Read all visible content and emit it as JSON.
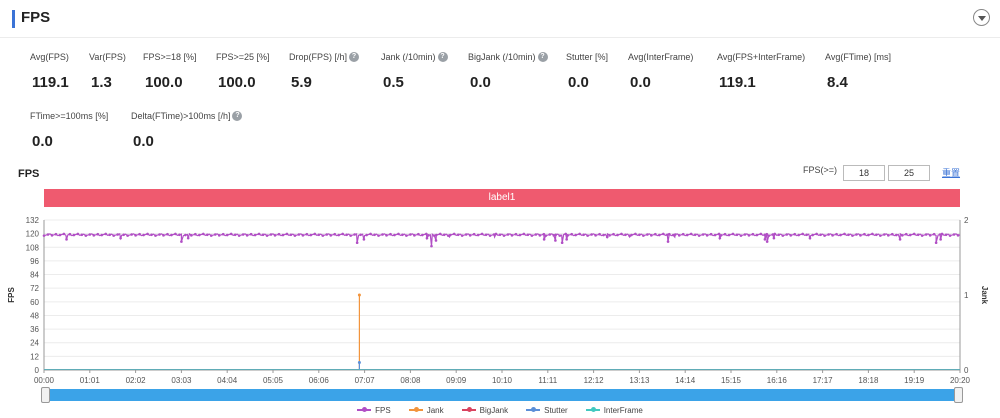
{
  "header": {
    "title": "FPS"
  },
  "metrics_row1": [
    {
      "label": "Avg(FPS)",
      "value": "119.1",
      "help": false
    },
    {
      "label": "Var(FPS)",
      "value": "1.3",
      "help": false
    },
    {
      "label": "FPS>=18 [%]",
      "value": "100.0",
      "help": false
    },
    {
      "label": "FPS>=25 [%]",
      "value": "100.0",
      "help": false
    },
    {
      "label": "Drop(FPS) [/h]",
      "value": "5.9",
      "help": true
    },
    {
      "label": "Jank (/10min)",
      "value": "0.5",
      "help": true
    },
    {
      "label": "BigJank (/10min)",
      "value": "0.0",
      "help": true
    },
    {
      "label": "Stutter [%]",
      "value": "0.0",
      "help": false
    },
    {
      "label": "Avg(InterFrame)",
      "value": "0.0",
      "help": false
    },
    {
      "label": "Avg(FPS+InterFrame)",
      "value": "119.1",
      "help": false
    },
    {
      "label": "Avg(FTime) [ms]",
      "value": "8.4",
      "help": false
    }
  ],
  "metrics_row2": [
    {
      "label": "FTime>=100ms [%]",
      "value": "0.0",
      "help": false
    },
    {
      "label": "Delta(FTime)>100ms [/h]",
      "value": "0.0",
      "help": true
    }
  ],
  "chart_controls": {
    "title": "FPS",
    "threshold_label": "FPS(>=)",
    "threshold_1": "18",
    "threshold_2": "25",
    "reset_label": "重置"
  },
  "label_band": "label1",
  "help_glyph": "?",
  "chart_data": {
    "type": "line",
    "x_ticks": [
      "00:00",
      "01:01",
      "02:02",
      "03:03",
      "04:04",
      "05:05",
      "06:06",
      "07:07",
      "08:08",
      "09:09",
      "10:10",
      "11:11",
      "12:12",
      "13:13",
      "14:14",
      "15:15",
      "16:16",
      "17:17",
      "18:18",
      "19:19",
      "20:20"
    ],
    "y_left": {
      "label": "FPS",
      "min": 0,
      "max": 132,
      "ticks": [
        "0",
        "12",
        "24",
        "36",
        "48",
        "60",
        "72",
        "84",
        "96",
        "108",
        "120",
        "132"
      ]
    },
    "y_right": {
      "label": "Jank",
      "min": 0,
      "max": 2,
      "ticks": [
        "0",
        "1",
        "2"
      ]
    },
    "series": [
      {
        "name": "FPS",
        "color": "#b14fc5",
        "baseline": 119,
        "dips": [
          [
            0.5,
            115
          ],
          [
            1.7,
            116
          ],
          [
            3.05,
            113
          ],
          [
            3.2,
            116
          ],
          [
            6.95,
            112
          ],
          [
            7.1,
            115
          ],
          [
            8.5,
            116
          ],
          [
            8.6,
            109
          ],
          [
            8.7,
            114
          ],
          [
            9.0,
            117
          ],
          [
            10.0,
            117
          ],
          [
            11.1,
            115
          ],
          [
            11.35,
            114
          ],
          [
            11.5,
            112
          ],
          [
            11.6,
            115
          ],
          [
            12.5,
            117
          ],
          [
            13.0,
            117
          ],
          [
            13.85,
            113
          ],
          [
            14.0,
            117
          ],
          [
            15.0,
            116
          ],
          [
            16.0,
            115
          ],
          [
            16.05,
            113
          ],
          [
            16.2,
            116
          ],
          [
            17.0,
            116
          ],
          [
            19.0,
            115
          ],
          [
            19.8,
            112
          ],
          [
            19.9,
            115
          ]
        ]
      },
      {
        "name": "Jank",
        "color": "#f2943c",
        "events": [
          [
            7.0,
            1
          ]
        ]
      },
      {
        "name": "BigJank",
        "color": "#d9435f",
        "events": []
      },
      {
        "name": "Stutter",
        "color": "#5b8fd8",
        "events": [
          [
            7.0,
            0.1
          ]
        ]
      },
      {
        "name": "InterFrame",
        "color": "#42c9c0",
        "events": []
      }
    ],
    "x_range": [
      0,
      20.33
    ],
    "grid": true,
    "legend": "bottom"
  }
}
